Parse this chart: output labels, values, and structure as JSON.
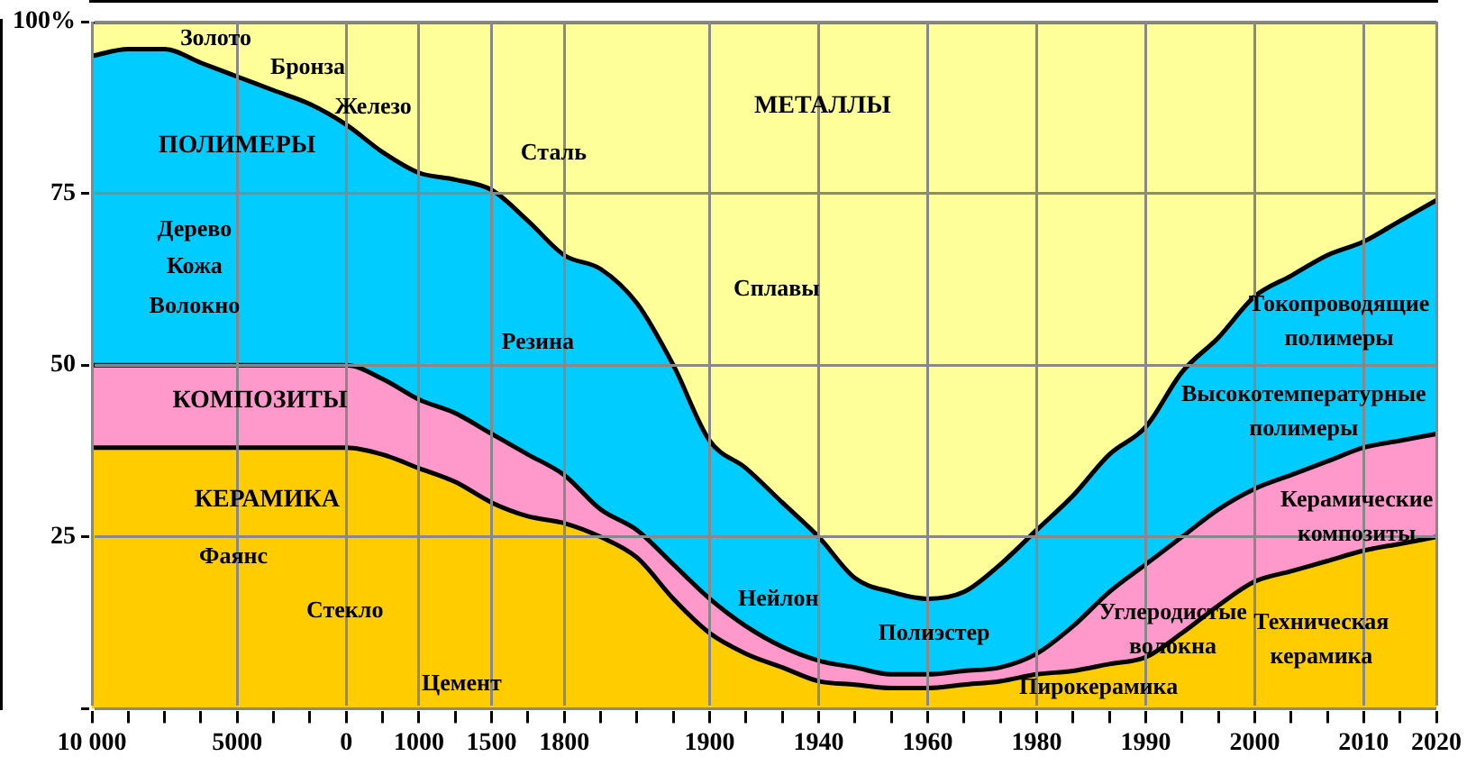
{
  "chart_data": {
    "type": "area",
    "stacked": true,
    "grid": true,
    "legend": false,
    "categories": [
      "10 000",
      null,
      null,
      null,
      "5000",
      null,
      null,
      "0",
      null,
      "1000",
      null,
      "1500",
      null,
      "1800",
      null,
      null,
      null,
      "1900",
      null,
      null,
      "1940",
      null,
      null,
      "1960",
      null,
      null,
      "1980",
      null,
      null,
      "1990",
      null,
      null,
      "2000",
      null,
      null,
      "2010",
      null,
      "2020"
    ],
    "ylim": [
      0,
      100
    ],
    "yticks": [
      {
        "value": 0,
        "label": null
      },
      25,
      50,
      75,
      {
        "value": 100,
        "label": "100%"
      }
    ],
    "series": [
      {
        "name": "КЕРАМИКА",
        "color": "#ffcc00",
        "values": [
          38,
          38,
          38,
          38,
          38,
          38,
          38,
          38,
          37,
          35,
          33,
          30,
          28,
          27,
          25,
          22,
          16,
          11,
          8,
          6,
          4,
          3.5,
          3,
          3,
          3.5,
          4,
          5,
          5.5,
          6.5,
          7.5,
          11,
          15,
          18.5,
          20,
          21.5,
          23,
          24,
          25
        ]
      },
      {
        "name": "КОМПОЗИТЫ",
        "color": "#ff99cc",
        "values": [
          12,
          12,
          12,
          12,
          12,
          12,
          12,
          12,
          11,
          10,
          10,
          10,
          9,
          7,
          4,
          4,
          5,
          5,
          4,
          3,
          3,
          2.5,
          2,
          2,
          2,
          2,
          3,
          6.5,
          10.5,
          13.5,
          14,
          14,
          13.5,
          14,
          14.5,
          15,
          15,
          15
        ]
      },
      {
        "name": "ПОЛИМЕРЫ",
        "color": "#00ccff",
        "values": [
          45,
          46,
          46,
          44,
          42,
          40,
          38,
          35,
          33,
          33,
          34,
          35.5,
          34,
          32,
          35,
          33,
          29,
          23,
          23,
          21,
          18,
          13,
          12,
          11,
          11.5,
          15,
          18,
          19,
          20,
          20,
          24,
          25,
          28,
          29,
          30,
          30,
          32,
          34
        ]
      },
      {
        "name": "МЕТАЛЛЫ",
        "color": "#ffff99",
        "values": [
          5,
          4,
          4,
          6,
          8,
          10,
          12,
          15,
          19,
          22,
          23,
          24.5,
          29,
          34,
          36,
          41,
          50,
          61,
          65,
          70,
          75,
          81,
          83,
          84,
          83,
          79,
          74,
          69,
          63,
          59,
          51,
          46,
          40,
          37,
          34,
          32,
          29,
          26
        ]
      }
    ],
    "annotations": [
      "Золото",
      "Бронза",
      "Железо",
      "Сталь",
      "Дерево",
      "Кожа",
      "Волокно",
      "Сплавы",
      "Резина",
      "Токопроводящие полимеры",
      "Высокотемпературные полимеры",
      "Фаянс",
      "Стекло",
      "Нейлон",
      "Полиэстер",
      "Керамические композиты",
      "Углеродистые волокна",
      "Техническая керамика",
      "Цемент",
      "Пирокерамика"
    ]
  }
}
